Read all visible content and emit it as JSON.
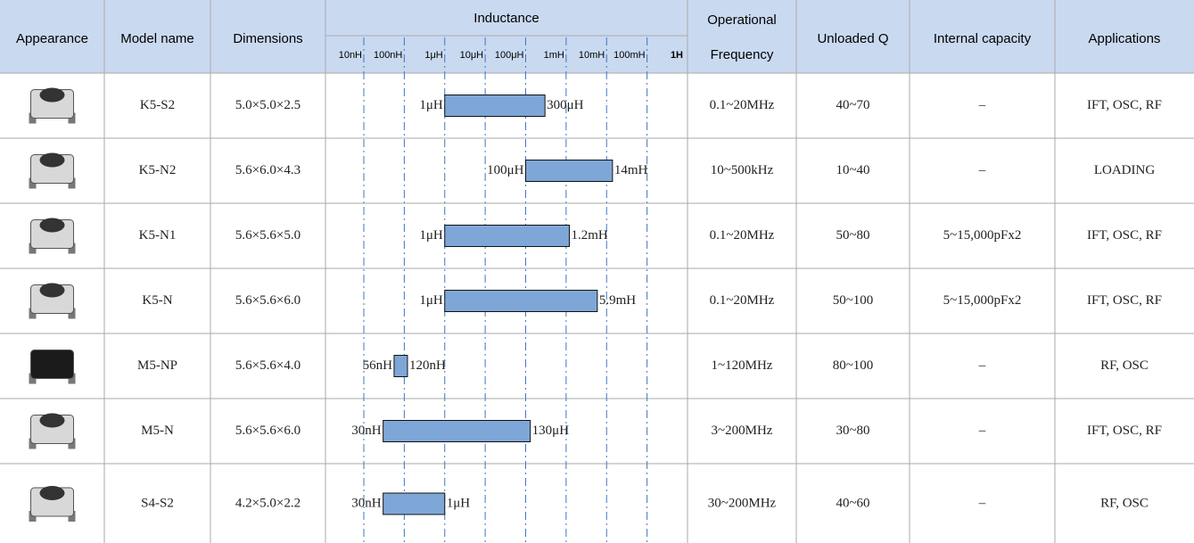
{
  "header": {
    "appearance": "Appearance",
    "model": "Model name",
    "dimensions": "Dimensions",
    "inductance": "Inductance",
    "frequency": [
      "Operational",
      "Frequency"
    ],
    "q": "Unloaded Q",
    "capacity": "Internal capacity",
    "applications": "Applications"
  },
  "inductance_axis": {
    "log": true,
    "xlim": [
      1e-08,
      1
    ],
    "bar_color": "#7ea7d8",
    "xticks": [
      {
        "value": 1e-08,
        "label": "10nH"
      },
      {
        "value": 1e-07,
        "label": "100nH"
      },
      {
        "value": 1e-06,
        "label": "1μH"
      },
      {
        "value": 1e-05,
        "label": "10μH"
      },
      {
        "value": 0.0001,
        "label": "100μH"
      },
      {
        "value": 0.001,
        "label": "1mH"
      },
      {
        "value": 0.01,
        "label": "10mH"
      },
      {
        "value": 0.1,
        "label": "100mH"
      },
      {
        "value": 1,
        "label": "1H"
      }
    ]
  },
  "rows": [
    {
      "model": "K5-S2",
      "dimensions": "5.0×5.0×2.5",
      "inductance": {
        "min": {
          "value": 1e-06,
          "label": "1μH"
        },
        "max": {
          "value": 0.0003,
          "label": "300μH"
        }
      },
      "frequency": "0.1~20MHz",
      "q": "40~70",
      "capacity": "–",
      "applications": "IFT, OSC, RF"
    },
    {
      "model": "K5-N2",
      "dimensions": "5.6×6.0×4.3",
      "inductance": {
        "min": {
          "value": 0.0001,
          "label": "100μH"
        },
        "max": {
          "value": 0.014,
          "label": "14mH"
        }
      },
      "frequency": "10~500kHz",
      "q": "10~40",
      "capacity": "–",
      "applications": "LOADING"
    },
    {
      "model": "K5-N1",
      "dimensions": "5.6×5.6×5.0",
      "inductance": {
        "min": {
          "value": 1e-06,
          "label": "1μH"
        },
        "max": {
          "value": 0.0012,
          "label": "1.2mH"
        }
      },
      "frequency": "0.1~20MHz",
      "q": "50~80",
      "capacity": "5~15,000pFx2",
      "applications": "IFT, OSC, RF"
    },
    {
      "model": "K5-N",
      "dimensions": "5.6×5.6×6.0",
      "inductance": {
        "min": {
          "value": 1e-06,
          "label": "1μH"
        },
        "max": {
          "value": 0.0059,
          "label": "5.9mH"
        }
      },
      "frequency": "0.1~20MHz",
      "q": "50~100",
      "capacity": "5~15,000pFx2",
      "applications": "IFT, OSC, RF"
    },
    {
      "model": "M5-NP",
      "dimensions": "5.6×5.6×4.0",
      "inductance": {
        "min": {
          "value": 5.6e-08,
          "label": "56nH"
        },
        "max": {
          "value": 1.2e-07,
          "label": "120nH"
        }
      },
      "frequency": "1~120MHz",
      "q": "80~100",
      "capacity": "–",
      "applications": "RF, OSC"
    },
    {
      "model": "M5-N",
      "dimensions": "5.6×5.6×6.0",
      "inductance": {
        "min": {
          "value": 3e-08,
          "label": "30nH"
        },
        "max": {
          "value": 0.00013,
          "label": "130μH"
        }
      },
      "frequency": "3~200MHz",
      "q": "30~80",
      "capacity": "–",
      "applications": "IFT, OSC, RF"
    },
    {
      "model": "S4-S2",
      "dimensions": "4.2×5.0×2.2",
      "inductance": {
        "min": {
          "value": 3e-08,
          "label": "30nH"
        },
        "max": {
          "value": 1e-06,
          "label": "1μH"
        }
      },
      "frequency": "30~200MHz",
      "q": "40~60",
      "capacity": "–",
      "applications": "RF, OSC"
    }
  ]
}
